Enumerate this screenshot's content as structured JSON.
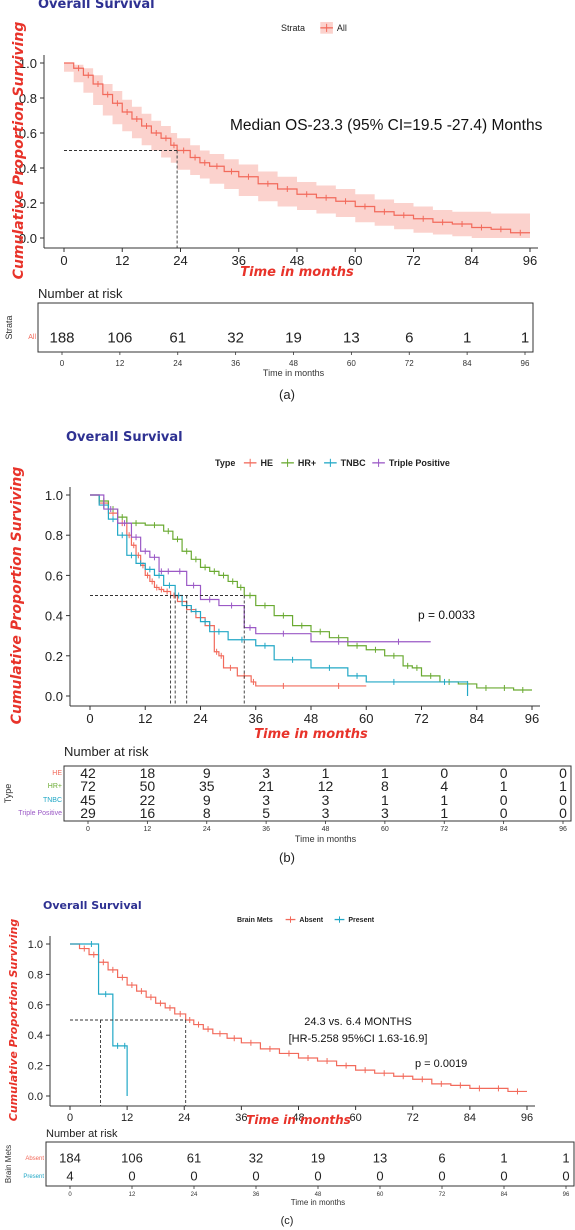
{
  "chart_data": [
    {
      "type": "line",
      "panel_label": "(a)",
      "title": "Overall Survival",
      "xlabel": "Time in months",
      "ylabel": "Cumulative Proportion Surviving",
      "xlim": [
        0,
        96
      ],
      "ylim": [
        0,
        1
      ],
      "xticks": [
        "0",
        "12",
        "24",
        "36",
        "48",
        "60",
        "72",
        "84",
        "96"
      ],
      "yticks": [
        "0.0",
        "0.2",
        "0.4",
        "0.6",
        "0.8",
        "1.0"
      ],
      "legend": {
        "title": "Strata",
        "position": "top"
      },
      "annotations": [
        "Median OS-23.3 (95% CI=19.5 -27.4) Months"
      ],
      "median": [
        23.3
      ],
      "series": [
        {
          "name": "All",
          "color": "#f26a5b",
          "ci": true,
          "x": [
            0,
            2,
            4,
            6,
            8,
            10,
            12,
            14,
            16,
            18,
            20,
            22,
            23.3,
            26,
            28,
            30,
            33,
            36,
            40,
            44,
            48,
            52,
            56,
            60,
            64,
            68,
            72,
            76,
            80,
            84,
            88,
            92,
            96
          ],
          "y": [
            1.0,
            0.97,
            0.93,
            0.88,
            0.82,
            0.77,
            0.72,
            0.68,
            0.64,
            0.6,
            0.57,
            0.53,
            0.5,
            0.46,
            0.43,
            0.41,
            0.38,
            0.35,
            0.31,
            0.28,
            0.25,
            0.23,
            0.21,
            0.18,
            0.15,
            0.13,
            0.11,
            0.09,
            0.08,
            0.06,
            0.05,
            0.03,
            0.03
          ],
          "ci_upper": [
            1.0,
            0.99,
            0.97,
            0.93,
            0.88,
            0.84,
            0.79,
            0.75,
            0.71,
            0.67,
            0.64,
            0.6,
            0.57,
            0.53,
            0.5,
            0.48,
            0.45,
            0.42,
            0.38,
            0.35,
            0.32,
            0.3,
            0.28,
            0.25,
            0.22,
            0.2,
            0.18,
            0.16,
            0.15,
            0.15,
            0.14,
            0.14,
            0.14
          ],
          "ci_lower": [
            1.0,
            0.95,
            0.89,
            0.83,
            0.76,
            0.7,
            0.65,
            0.61,
            0.57,
            0.53,
            0.5,
            0.46,
            0.43,
            0.39,
            0.36,
            0.34,
            0.31,
            0.28,
            0.24,
            0.21,
            0.18,
            0.16,
            0.14,
            0.12,
            0.09,
            0.07,
            0.05,
            0.03,
            0.02,
            0.01,
            0.0,
            0.0,
            0.0
          ]
        }
      ],
      "risk_table": {
        "title": "Number at risk",
        "label": "Strata",
        "xlabel": "Time in months",
        "rows": [
          {
            "name": "All",
            "color": "#f26a5b",
            "values": [
              "188",
              "106",
              "61",
              "32",
              "19",
              "13",
              "6",
              "1",
              "1"
            ]
          }
        ]
      }
    },
    {
      "type": "line",
      "panel_label": "(b)",
      "title": "Overall Survival",
      "xlabel": "Time in months",
      "ylabel": "Cumulative Proportion Surviving",
      "xlim": [
        0,
        96
      ],
      "ylim": [
        0,
        1
      ],
      "xticks": [
        "0",
        "12",
        "24",
        "36",
        "48",
        "60",
        "72",
        "84",
        "96"
      ],
      "yticks": [
        "0.0",
        "0.2",
        "0.4",
        "0.6",
        "0.8",
        "1.0"
      ],
      "legend": {
        "title": "Type",
        "position": "top"
      },
      "annotations": [
        "p = 0.0033"
      ],
      "median": [
        17.5,
        18.5,
        21,
        33.5
      ],
      "series": [
        {
          "name": "HE",
          "color": "#f26a5b",
          "x": [
            0,
            2,
            4,
            6,
            8,
            9,
            10,
            11,
            12,
            13,
            14,
            15,
            16,
            17.5,
            19,
            21,
            23,
            25,
            27,
            28,
            29,
            32,
            35,
            36,
            48,
            60
          ],
          "y": [
            1.0,
            0.96,
            0.91,
            0.86,
            0.8,
            0.75,
            0.7,
            0.65,
            0.6,
            0.57,
            0.54,
            0.53,
            0.52,
            0.5,
            0.47,
            0.43,
            0.39,
            0.35,
            0.22,
            0.2,
            0.14,
            0.1,
            0.07,
            0.05,
            0.05,
            0.05
          ]
        },
        {
          "name": "HR+",
          "color": "#6aaa32",
          "x": [
            0,
            2,
            4,
            6,
            8,
            12,
            16,
            18,
            20,
            22,
            24,
            26,
            28,
            30,
            32,
            33.5,
            36,
            40,
            44,
            48,
            52,
            56,
            60,
            64,
            68,
            70,
            72,
            76,
            80,
            84,
            88,
            92,
            96
          ],
          "y": [
            1.0,
            0.97,
            0.93,
            0.89,
            0.86,
            0.85,
            0.82,
            0.78,
            0.72,
            0.68,
            0.64,
            0.62,
            0.6,
            0.57,
            0.54,
            0.5,
            0.45,
            0.4,
            0.35,
            0.32,
            0.29,
            0.25,
            0.23,
            0.2,
            0.15,
            0.14,
            0.1,
            0.07,
            0.06,
            0.04,
            0.04,
            0.03,
            0.03
          ]
        },
        {
          "name": "TNBC",
          "color": "#22a8c6",
          "x": [
            0,
            2,
            4,
            6,
            8,
            10,
            12,
            14,
            16,
            18.5,
            20,
            22,
            24,
            26,
            30,
            36,
            40,
            48,
            56,
            60,
            72,
            82
          ],
          "y": [
            1.0,
            0.95,
            0.88,
            0.8,
            0.7,
            0.66,
            0.63,
            0.6,
            0.55,
            0.5,
            0.45,
            0.42,
            0.37,
            0.32,
            0.28,
            0.25,
            0.18,
            0.14,
            0.1,
            0.07,
            0.07,
            0.0
          ]
        },
        {
          "name": "Triple Positive",
          "color": "#9b59c6",
          "x": [
            0,
            3,
            6,
            9,
            11,
            13,
            15,
            16,
            18,
            21,
            24,
            28,
            33.5,
            36,
            48,
            60,
            74
          ],
          "y": [
            1.0,
            0.93,
            0.86,
            0.79,
            0.72,
            0.69,
            0.62,
            0.62,
            0.62,
            0.55,
            0.48,
            0.45,
            0.34,
            0.31,
            0.27,
            0.27,
            0.27
          ]
        }
      ],
      "risk_table": {
        "title": "Number at risk",
        "label": "Type",
        "xlabel": "Time in months",
        "rows": [
          {
            "name": "HE",
            "color": "#f26a5b",
            "values": [
              "42",
              "18",
              "9",
              "3",
              "1",
              "1",
              "0",
              "0",
              "0"
            ]
          },
          {
            "name": "HR+",
            "color": "#6aaa32",
            "values": [
              "72",
              "50",
              "35",
              "21",
              "12",
              "8",
              "4",
              "1",
              "1"
            ]
          },
          {
            "name": "TNBC",
            "color": "#22a8c6",
            "values": [
              "45",
              "22",
              "9",
              "3",
              "3",
              "1",
              "1",
              "0",
              "0"
            ]
          },
          {
            "name": "Triple Positive",
            "color": "#9b59c6",
            "values": [
              "29",
              "16",
              "8",
              "5",
              "3",
              "3",
              "1",
              "0",
              "0"
            ]
          }
        ]
      }
    },
    {
      "type": "line",
      "panel_label": "(c)",
      "title": "Overall Survival",
      "xlabel": "Time in months",
      "ylabel": "Cumulative Proportion Surviving",
      "xlim": [
        0,
        96
      ],
      "ylim": [
        0,
        1
      ],
      "xticks": [
        "0",
        "12",
        "24",
        "36",
        "48",
        "60",
        "72",
        "84",
        "96"
      ],
      "yticks": [
        "0.0",
        "0.2",
        "0.4",
        "0.6",
        "0.8",
        "1.0"
      ],
      "legend": {
        "title": "Brain Mets",
        "position": "top"
      },
      "annotations": [
        "24.3 vs. 6.4 MONTHS",
        "[HR-5.258 95%CI 1.63-16.9]",
        "p = 0.0019"
      ],
      "median": [
        6.4,
        24.3
      ],
      "series": [
        {
          "name": "Absent",
          "color": "#f26a5b",
          "x": [
            0,
            2,
            4,
            6,
            8,
            10,
            12,
            14,
            16,
            18,
            20,
            22,
            24.3,
            26,
            28,
            30,
            33,
            36,
            40,
            44,
            48,
            52,
            56,
            60,
            64,
            68,
            72,
            76,
            80,
            84,
            88,
            92,
            96
          ],
          "y": [
            1.0,
            0.97,
            0.93,
            0.88,
            0.83,
            0.78,
            0.73,
            0.69,
            0.65,
            0.61,
            0.58,
            0.54,
            0.5,
            0.47,
            0.44,
            0.41,
            0.38,
            0.35,
            0.31,
            0.28,
            0.25,
            0.23,
            0.2,
            0.17,
            0.15,
            0.13,
            0.11,
            0.08,
            0.07,
            0.05,
            0.05,
            0.03,
            0.03
          ]
        },
        {
          "name": "Present",
          "color": "#22a8c6",
          "x": [
            0,
            3,
            6,
            9,
            11,
            12
          ],
          "y": [
            1.0,
            1.0,
            0.67,
            0.33,
            0.33,
            0.0
          ]
        }
      ],
      "risk_table": {
        "title": "Number at risk",
        "label": "Brain Mets",
        "xlabel": "Time in months",
        "rows": [
          {
            "name": "Absent",
            "color": "#f26a5b",
            "values": [
              "184",
              "106",
              "61",
              "32",
              "19",
              "13",
              "6",
              "1",
              "1"
            ]
          },
          {
            "name": "Present",
            "color": "#22a8c6",
            "values": [
              "4",
              "0",
              "0",
              "0",
              "0",
              "0",
              "0",
              "0",
              "0"
            ]
          }
        ]
      }
    }
  ]
}
